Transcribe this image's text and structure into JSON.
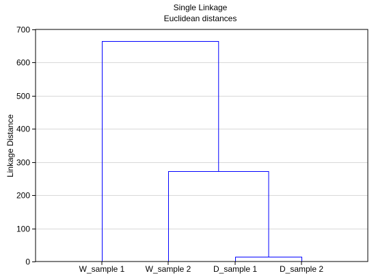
{
  "chart_data": {
    "type": "dendrogram",
    "title": "Single Linkage",
    "subtitle": "Euclidean distances",
    "ylabel": "Linkage Distance",
    "xlabel": "",
    "ylim": [
      0,
      700
    ],
    "yticks": [
      0,
      100,
      200,
      300,
      400,
      500,
      600,
      700
    ],
    "grid": true,
    "leaves": [
      "W_sample 1",
      "W_sample 2",
      "D_sample 1",
      "D_sample 2"
    ],
    "merges": [
      {
        "left": "D_sample 1",
        "right": "D_sample 2",
        "distance": 15
      },
      {
        "left": "W_sample 2",
        "right": "D_sample 1 + D_sample 2",
        "distance": 272
      },
      {
        "left": "W_sample 1",
        "right": "W_sample 2 + D_sample 1 + D_sample 2",
        "distance": 664
      }
    ],
    "colors": {
      "branches": "#0000ff",
      "axis": "#000000",
      "grid": "#d8d8d8"
    }
  }
}
